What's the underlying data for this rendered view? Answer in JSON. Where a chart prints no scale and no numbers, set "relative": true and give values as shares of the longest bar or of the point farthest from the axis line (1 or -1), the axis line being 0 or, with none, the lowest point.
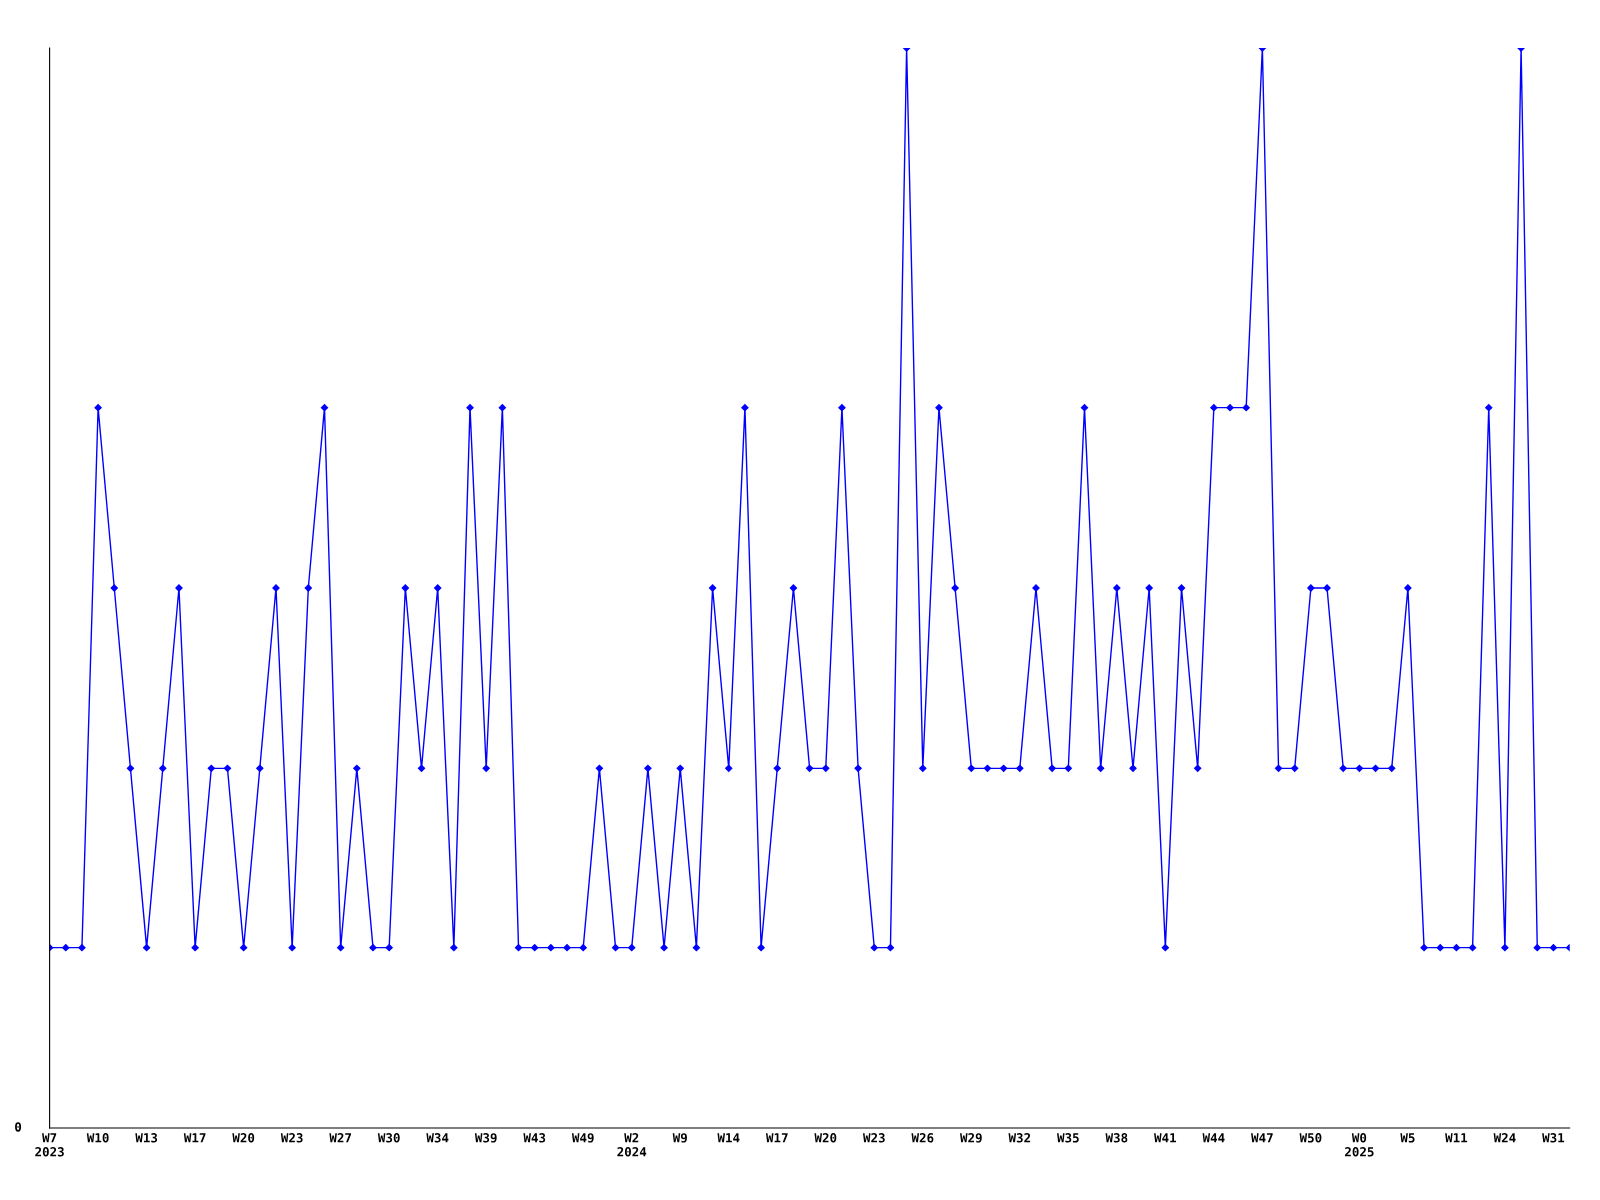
{
  "chart_data": {
    "type": "line",
    "relative": true,
    "marker": "diamond",
    "line_style": "solid",
    "grid": false,
    "legend": false,
    "categories": [
      "W7\n2023",
      null,
      null,
      "W10",
      null,
      null,
      "W13",
      null,
      null,
      "W17",
      null,
      null,
      "W20",
      null,
      null,
      "W23",
      null,
      null,
      "W27",
      null,
      null,
      "W30",
      null,
      null,
      "W34",
      null,
      null,
      "W39",
      null,
      null,
      "W43",
      null,
      null,
      "W49",
      null,
      null,
      "W2\n2024",
      null,
      null,
      "W9",
      null,
      null,
      "W14",
      null,
      null,
      "W17",
      null,
      null,
      "W20",
      null,
      null,
      "W23",
      null,
      null,
      "W26",
      null,
      null,
      "W29",
      null,
      null,
      "W32",
      null,
      null,
      "W35",
      null,
      null,
      "W38",
      null,
      null,
      "W41",
      null,
      null,
      "W44",
      null,
      null,
      "W47",
      null,
      null,
      "W50",
      null,
      null,
      "W0\n2025",
      null,
      null,
      "W5",
      null,
      null,
      "W11",
      null,
      null,
      "W24",
      null,
      null,
      "W31",
      null
    ],
    "series": [
      {
        "color": "#0000ff",
        "values": [
          0.167,
          0.167,
          0.167,
          0.667,
          0.5,
          0.333,
          0.167,
          0.333,
          0.5,
          0.167,
          0.333,
          0.333,
          0.167,
          0.333,
          0.5,
          0.167,
          0.5,
          0.667,
          0.167,
          0.333,
          0.167,
          0.167,
          0.5,
          0.333,
          0.5,
          0.167,
          0.667,
          0.333,
          0.667,
          0.167,
          0.167,
          0.167,
          0.167,
          0.167,
          0.333,
          0.167,
          0.167,
          0.333,
          0.167,
          0.333,
          0.167,
          0.5,
          0.333,
          0.667,
          0.167,
          0.333,
          0.5,
          0.333,
          0.333,
          0.667,
          0.333,
          0.167,
          0.167,
          1,
          0.333,
          0.667,
          0.5,
          0.333,
          0.333,
          0.333,
          0.333,
          0.5,
          0.333,
          0.333,
          0.667,
          0.333,
          0.5,
          0.333,
          0.5,
          0.167,
          0.5,
          0.333,
          0.667,
          0.667,
          0.667,
          1,
          0.333,
          0.333,
          0.5,
          0.5,
          0.333,
          0.333,
          0.333,
          0.333,
          0.5,
          0.167,
          0.167,
          0.167,
          0.167,
          0.667,
          0.167,
          1,
          0.167,
          0.167,
          0.167
        ]
      }
    ],
    "annotations": [
      "0"
    ]
  }
}
